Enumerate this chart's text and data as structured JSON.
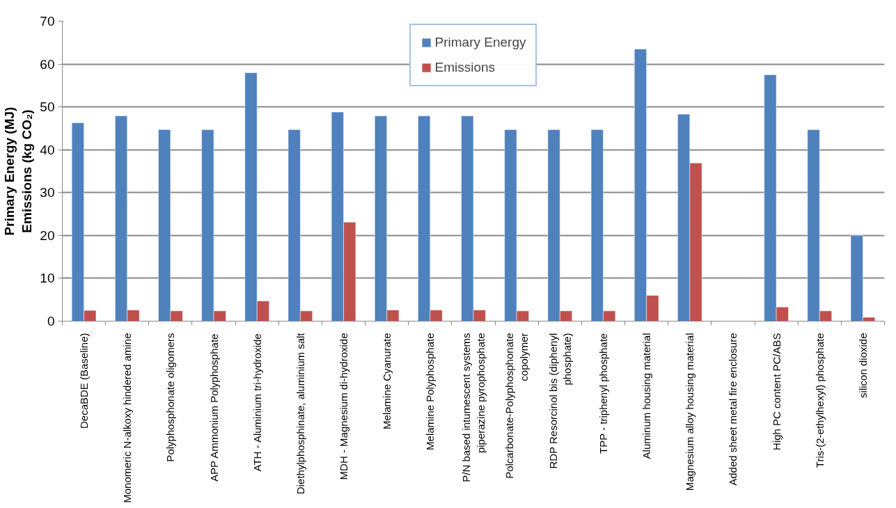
{
  "chart_data": {
    "type": "bar",
    "ylabel": "Primary Energy (MJ)\nEmissions (kg CO₂)",
    "categories": [
      "DecaBDE (Baseline)",
      "Monomeric N-alkoxy hindered amine",
      "Polyphosphonate oligomers",
      "APP Ammonium Polyphosphate",
      "ATH - Aluminium tri-hydroxide",
      "Diethylphosphinate, aluminium salt",
      "MDH - Magnesium di-hydroxide",
      "Melamine Cyanurate",
      "Melamine Polyphosphate",
      "P/N based intumescent systems piperazine pyrophosphate",
      "Polcarbonate-Polyphosphonate copolymer",
      "RDP Resorcinol bis (diphenyl phosphate)",
      "TPP - triphenyl phosphate",
      "Aluminum housing material",
      "Magnesium alloy housing material",
      "Added sheet metal fire enclosure",
      "High PC content PC/ABS",
      "Tris-(2-ethylhexyl) phosphate",
      "silicon dioxide"
    ],
    "series": [
      {
        "name": "Primary Energy",
        "color": "#4f81bd",
        "values": [
          46.3,
          47.9,
          44.7,
          44.7,
          58.0,
          44.7,
          48.8,
          47.9,
          47.9,
          47.9,
          44.7,
          44.7,
          44.7,
          63.5,
          48.3,
          null,
          57.5,
          44.7,
          20.0
        ]
      },
      {
        "name": "Emissions",
        "color": "#c0504d",
        "values": [
          2.5,
          2.6,
          2.4,
          2.4,
          4.7,
          2.4,
          23.1,
          2.6,
          2.6,
          2.6,
          2.4,
          2.4,
          2.4,
          6.0,
          36.9,
          null,
          3.3,
          2.4,
          0.9
        ]
      }
    ],
    "ylim": [
      0,
      70
    ],
    "yticks": [
      0,
      10,
      20,
      30,
      40,
      50,
      60,
      70
    ],
    "grid": "y",
    "legend": "top"
  }
}
